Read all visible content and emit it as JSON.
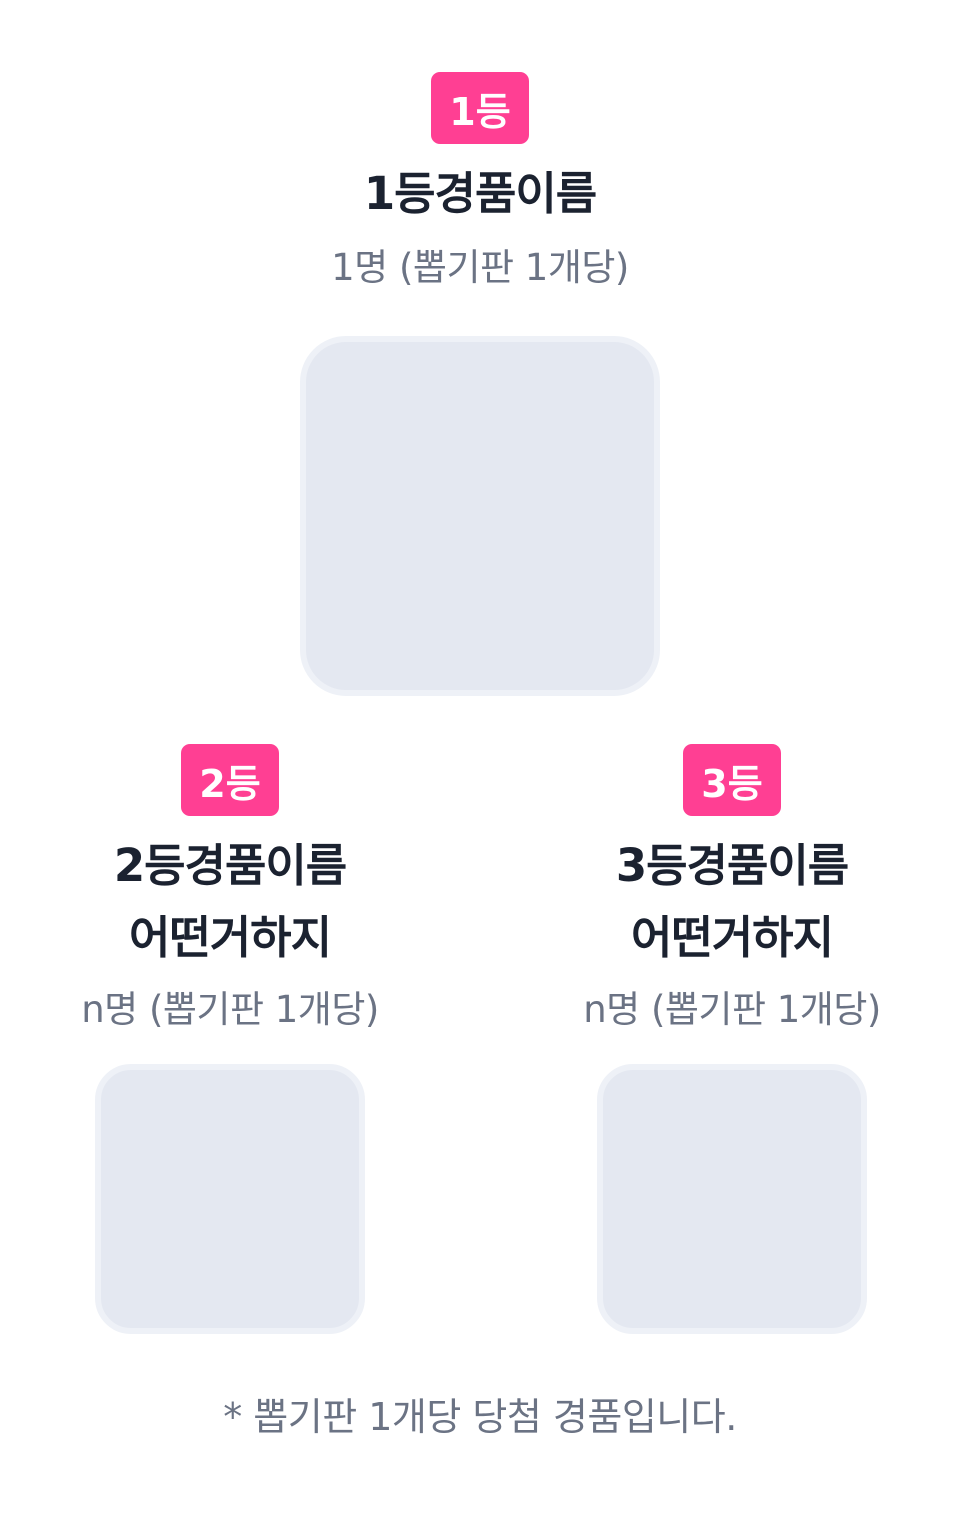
{
  "prizes": [
    {
      "rank_label": "1등",
      "name_lines": [
        "1등경품이름"
      ],
      "count_text": "1명 (뽑기판 1개당)"
    },
    {
      "rank_label": "2등",
      "name_lines": [
        "2등경품이름",
        "어떤거하지"
      ],
      "count_text": "n명 (뽑기판 1개당)"
    },
    {
      "rank_label": "3등",
      "name_lines": [
        "3등경품이름",
        "어떤거하지"
      ],
      "count_text": "n명 (뽑기판 1개당)"
    }
  ],
  "footnote": "* 뽑기판 1개당 당첨 경품입니다.",
  "colors": {
    "badge_bg": "#ff3f93",
    "placeholder_bg": "#e4e8f1",
    "title_text": "#1b2230",
    "secondary_text": "#6b7384"
  }
}
